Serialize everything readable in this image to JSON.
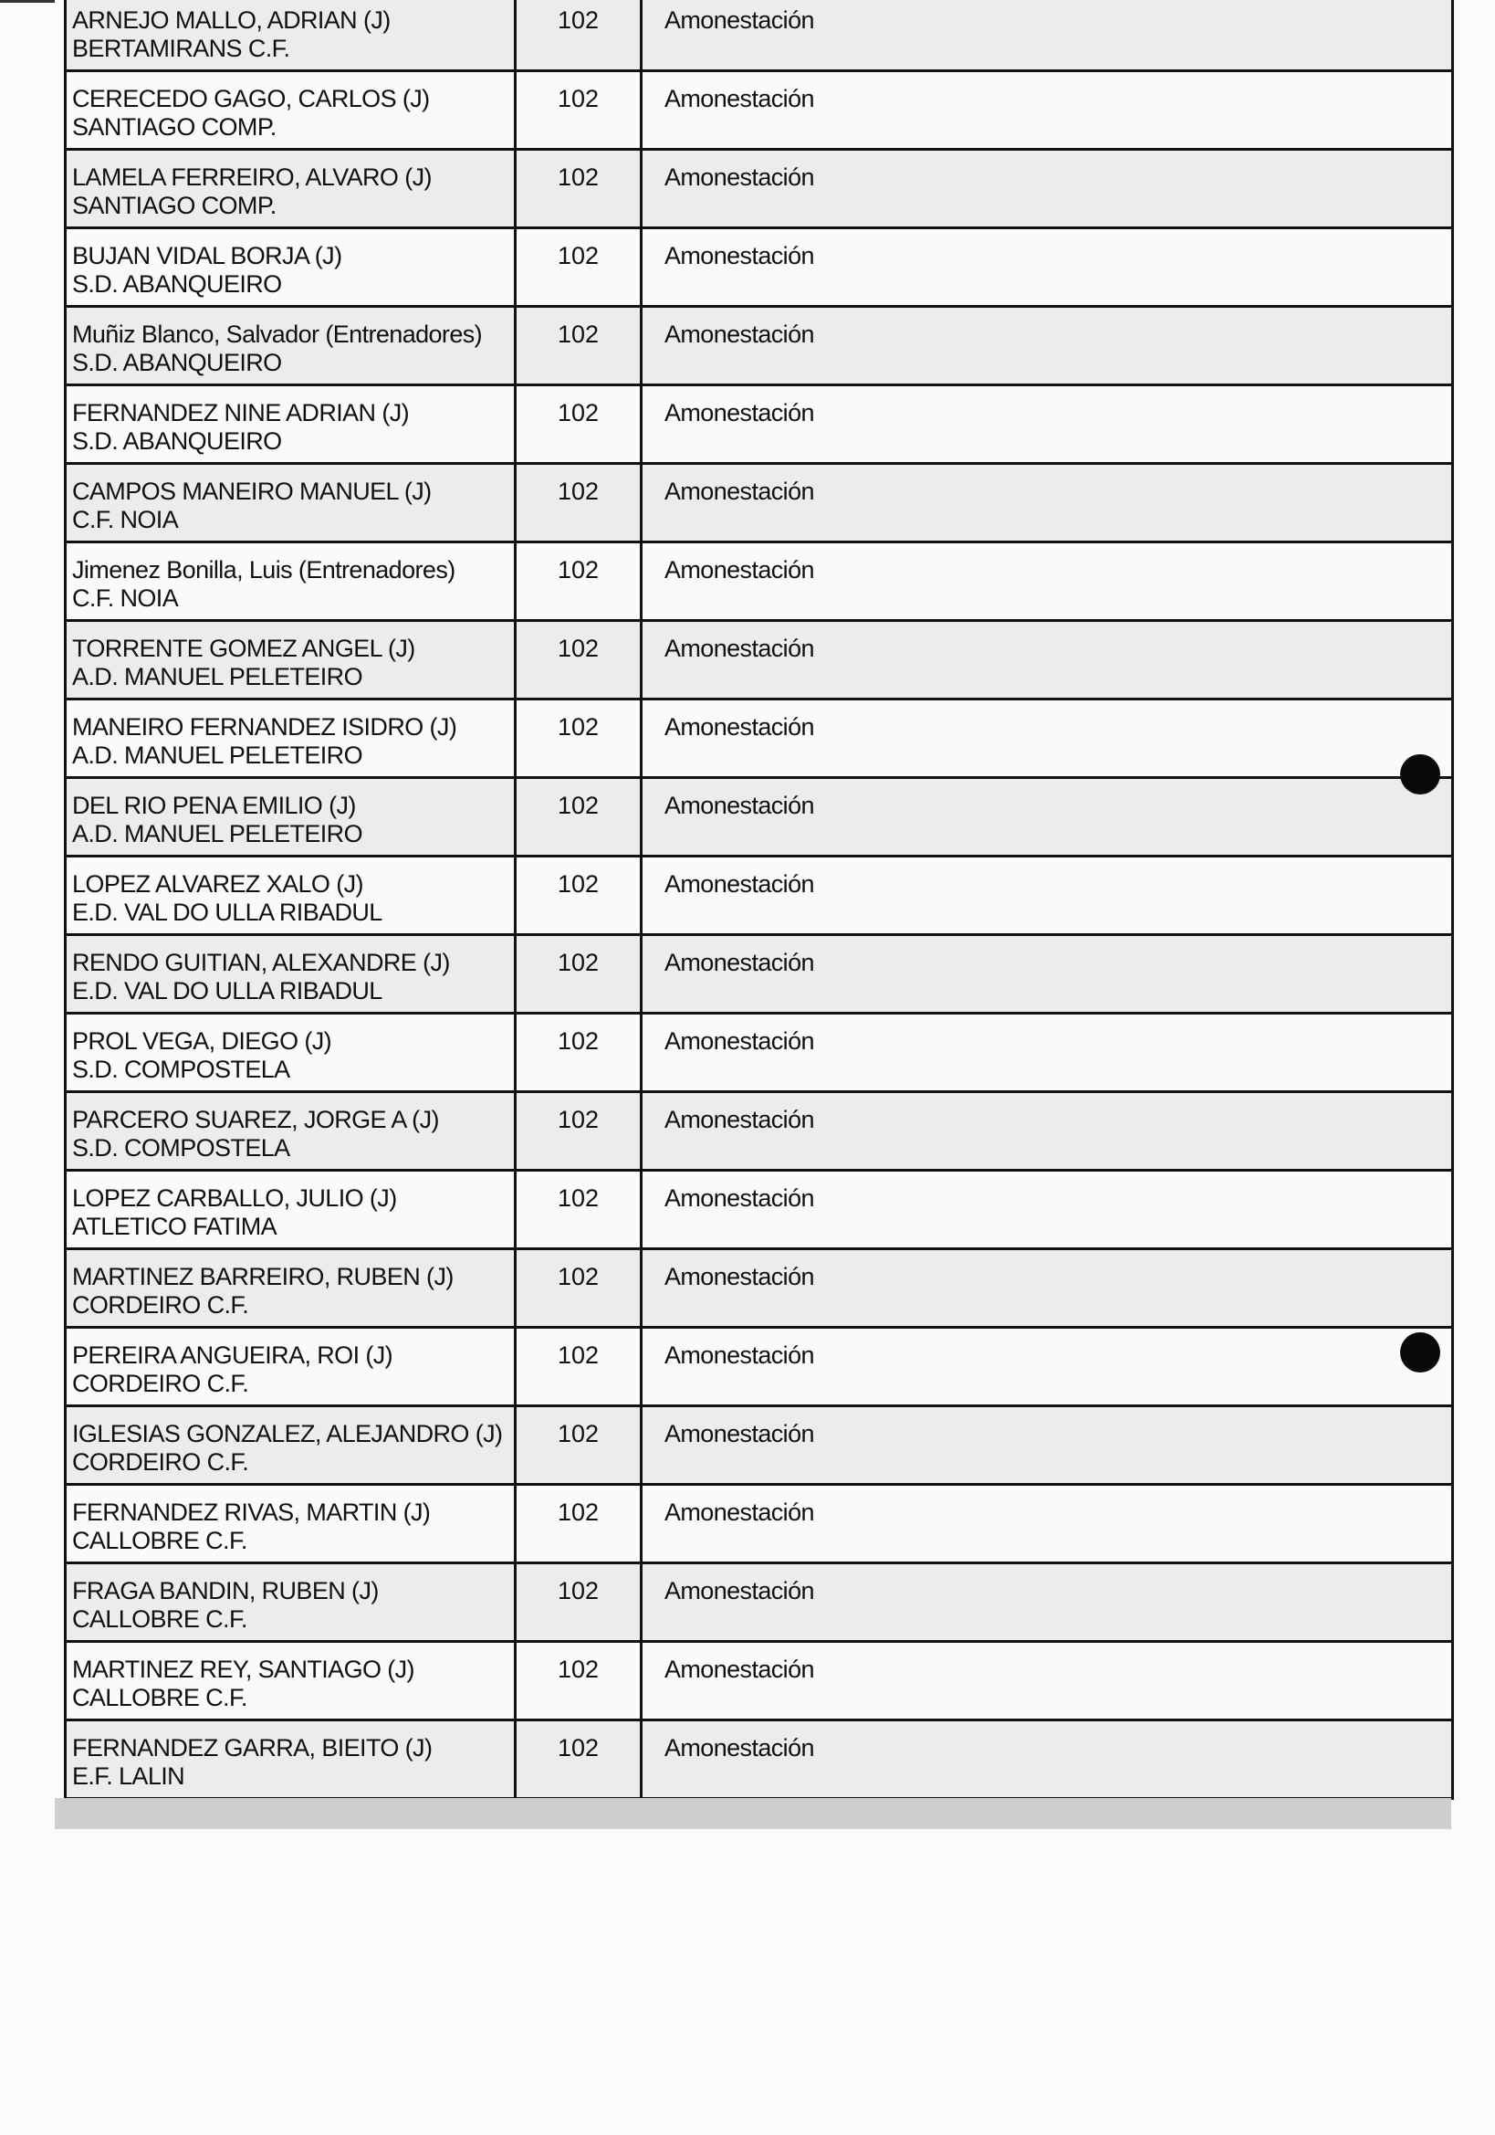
{
  "table": {
    "rows": [
      {
        "name": "ARNEJO MALLO, ADRIAN (J)",
        "club": "BERTAMIRANS C.F.",
        "code": "102",
        "sanction": "Amonestación"
      },
      {
        "name": "CERECEDO GAGO, CARLOS (J)",
        "club": "SANTIAGO COMP.",
        "code": "102",
        "sanction": "Amonestación"
      },
      {
        "name": "LAMELA FERREIRO, ALVARO (J)",
        "club": "SANTIAGO COMP.",
        "code": "102",
        "sanction": "Amonestación"
      },
      {
        "name": "BUJAN VIDAL BORJA (J)",
        "club": "S.D. ABANQUEIRO",
        "code": "102",
        "sanction": "Amonestación"
      },
      {
        "name": "Muñiz Blanco, Salvador (Entrenadores)",
        "club": "S.D. ABANQUEIRO",
        "code": "102",
        "sanction": "Amonestación"
      },
      {
        "name": "FERNANDEZ NINE ADRIAN (J)",
        "club": "S.D. ABANQUEIRO",
        "code": "102",
        "sanction": "Amonestación"
      },
      {
        "name": "CAMPOS MANEIRO MANUEL (J)",
        "club": "C.F. NOIA",
        "code": "102",
        "sanction": "Amonestación"
      },
      {
        "name": "Jimenez Bonilla, Luis (Entrenadores)",
        "club": "C.F. NOIA",
        "code": "102",
        "sanction": "Amonestación"
      },
      {
        "name": "TORRENTE GOMEZ ANGEL (J)",
        "club": "A.D. MANUEL PELETEIRO",
        "code": "102",
        "sanction": "Amonestación"
      },
      {
        "name": "MANEIRO FERNANDEZ ISIDRO (J)",
        "club": "A.D. MANUEL PELETEIRO",
        "code": "102",
        "sanction": "Amonestación"
      },
      {
        "name": "DEL RIO PENA EMILIO (J)",
        "club": "A.D. MANUEL PELETEIRO",
        "code": "102",
        "sanction": "Amonestación"
      },
      {
        "name": "LOPEZ ALVAREZ XALO (J)",
        "club": "E.D. VAL DO ULLA RIBADUL",
        "code": "102",
        "sanction": "Amonestación"
      },
      {
        "name": "RENDO GUITIAN, ALEXANDRE (J)",
        "club": "E.D. VAL DO ULLA RIBADUL",
        "code": "102",
        "sanction": "Amonestación"
      },
      {
        "name": "PROL VEGA, DIEGO (J)",
        "club": "S.D. COMPOSTELA",
        "code": "102",
        "sanction": "Amonestación"
      },
      {
        "name": "PARCERO SUAREZ, JORGE A (J)",
        "club": "S.D. COMPOSTELA",
        "code": "102",
        "sanction": "Amonestación"
      },
      {
        "name": "LOPEZ CARBALLO, JULIO (J)",
        "club": "ATLETICO FATIMA",
        "code": "102",
        "sanction": "Amonestación"
      },
      {
        "name": "MARTINEZ BARREIRO, RUBEN (J)",
        "club": "CORDEIRO C.F.",
        "code": "102",
        "sanction": "Amonestación"
      },
      {
        "name": "PEREIRA ANGUEIRA, ROI (J)",
        "club": "CORDEIRO C.F.",
        "code": "102",
        "sanction": "Amonestación"
      },
      {
        "name": "IGLESIAS GONZALEZ, ALEJANDRO (J)",
        "club": "CORDEIRO C.F.",
        "code": "102",
        "sanction": "Amonestación"
      },
      {
        "name": "FERNANDEZ RIVAS, MARTIN (J)",
        "club": "CALLOBRE C.F.",
        "code": "102",
        "sanction": "Amonestación"
      },
      {
        "name": "FRAGA BANDIN, RUBEN (J)",
        "club": "CALLOBRE C.F.",
        "code": "102",
        "sanction": "Amonestación"
      },
      {
        "name": "MARTINEZ REY, SANTIAGO (J)",
        "club": "CALLOBRE C.F.",
        "code": "102",
        "sanction": "Amonestación"
      },
      {
        "name": "FERNANDEZ GARRA, BIEITO (J)",
        "club": "E.F. LALIN",
        "code": "102",
        "sanction": "Amonestación"
      }
    ]
  }
}
